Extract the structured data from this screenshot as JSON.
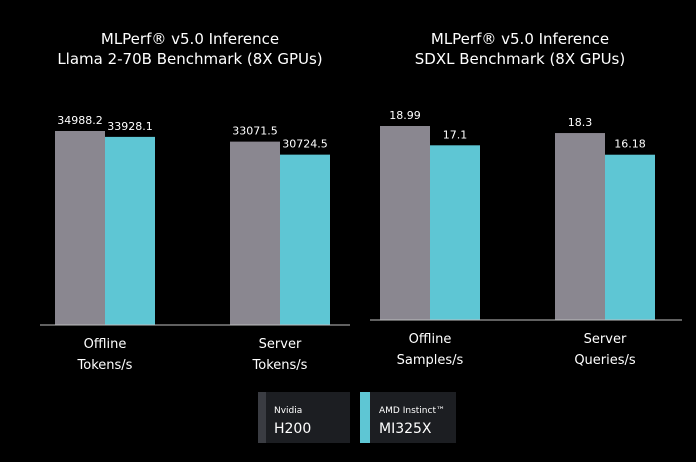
{
  "colors": {
    "background": "#000000",
    "h200": "#8a8790",
    "mi325x": "#5ec6d4",
    "legend_box": "#1c1e22",
    "axis": "#bfbfbf"
  },
  "chart_data": [
    {
      "type": "bar",
      "title": [
        "MLPerf® v5.0 Inference",
        "Llama 2-70B Benchmark (8X GPUs)"
      ],
      "categories": [
        [
          "Offline",
          "Tokens/s"
        ],
        [
          "Server",
          "Tokens/s"
        ]
      ],
      "series": [
        {
          "name": "Nvidia H200",
          "values": [
            34988.2,
            33071.5
          ],
          "labels": [
            "34988.2",
            "33071.5"
          ]
        },
        {
          "name": "AMD Instinct™ MI325X",
          "values": [
            33928.1,
            30724.5
          ],
          "labels": [
            "33928.1",
            "30724.5"
          ]
        }
      ],
      "ylim": [
        0,
        34988.2
      ],
      "grid": false
    },
    {
      "type": "bar",
      "title": [
        "MLPerf® v5.0 Inference",
        "SDXL Benchmark (8X GPUs)"
      ],
      "categories": [
        [
          "Offline",
          "Samples/s"
        ],
        [
          "Server",
          "Queries/s"
        ]
      ],
      "series": [
        {
          "name": "Nvidia H200",
          "values": [
            18.99,
            18.3
          ],
          "labels": [
            "18.99",
            "18.3"
          ]
        },
        {
          "name": "AMD Instinct™ MI325X",
          "values": [
            17.1,
            16.18
          ],
          "labels": [
            "17.1",
            "16.18"
          ]
        }
      ],
      "ylim": [
        0,
        18.99
      ],
      "grid": false
    }
  ],
  "legend": {
    "placement": "bottom-center",
    "items": [
      {
        "vendor": "Nvidia",
        "product": "H200"
      },
      {
        "vendor": "AMD Instinct™",
        "product": "MI325X"
      }
    ]
  }
}
